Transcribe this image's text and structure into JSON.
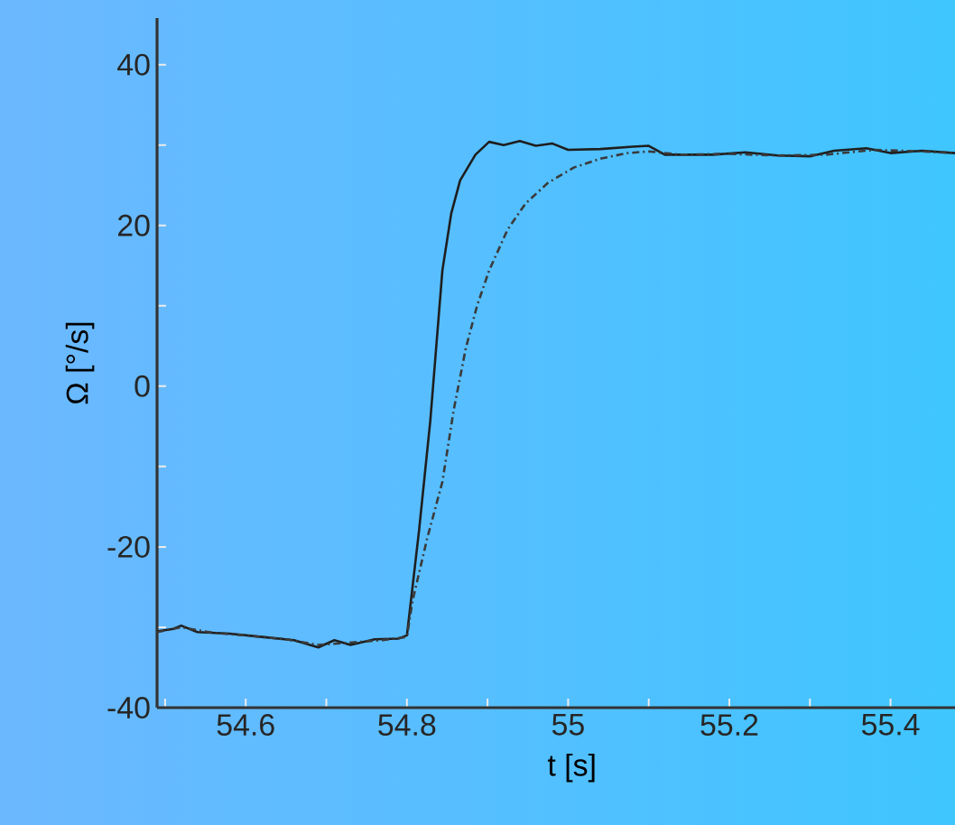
{
  "chart_data": {
    "type": "line",
    "xlabel": "t [s]",
    "ylabel": "Ω [°/s]",
    "xlim": [
      54.49,
      55.48
    ],
    "ylim": [
      -40,
      45.8
    ],
    "xticks": [
      {
        "value": 54.5,
        "label": null
      },
      54.6,
      {
        "value": 54.7,
        "label": null
      },
      54.8,
      {
        "value": 54.9,
        "label": null
      },
      55,
      {
        "value": 55.1,
        "label": null
      },
      55.2,
      {
        "value": 55.3,
        "label": null
      },
      55.4
    ],
    "yticks": [
      -40,
      {
        "value": -30,
        "label": null
      },
      -20,
      {
        "value": -10,
        "label": null
      },
      0,
      {
        "value": 10,
        "label": null
      },
      20,
      {
        "value": 30,
        "label": null
      },
      40
    ],
    "grid": false,
    "series": [
      {
        "color": "#1e1e1e",
        "line_style": "solid",
        "x": [
          54.49,
          54.51,
          54.52,
          54.54,
          54.58,
          54.62,
          54.66,
          54.69,
          54.71,
          54.73,
          54.76,
          54.79,
          54.8,
          54.815,
          54.829,
          54.844,
          54.855,
          54.866,
          54.885,
          54.902,
          54.92,
          54.94,
          54.96,
          54.98,
          55.0,
          55.04,
          55.08,
          55.1,
          55.12,
          55.18,
          55.22,
          55.26,
          55.3,
          55.33,
          55.37,
          55.4,
          55.44,
          55.48
        ],
        "values": [
          -30.5,
          -30.2,
          -29.8,
          -30.6,
          -30.8,
          -31.2,
          -31.6,
          -32.5,
          -31.6,
          -32.2,
          -31.5,
          -31.4,
          -31.0,
          -18,
          -4.3,
          14.4,
          21.5,
          25.6,
          28.8,
          30.4,
          30.0,
          30.5,
          29.9,
          30.2,
          29.4,
          29.5,
          29.8,
          29.9,
          28.8,
          28.8,
          29.1,
          28.7,
          28.6,
          29.3,
          29.6,
          29.0,
          29.3,
          29.0
        ]
      },
      {
        "color": "#3a3a3a",
        "line_style": "dashed",
        "x": [
          54.49,
          54.52,
          54.56,
          54.6,
          54.65,
          54.69,
          54.73,
          54.77,
          54.8,
          54.807,
          54.825,
          54.844,
          54.858,
          54.873,
          54.887,
          54.902,
          54.925,
          54.947,
          54.975,
          55.007,
          55.04,
          55.073,
          55.1,
          55.14,
          55.2,
          55.26,
          55.32,
          55.38,
          55.44,
          55.48
        ],
        "values": [
          -30.6,
          -30.0,
          -30.7,
          -31.0,
          -31.5,
          -32.2,
          -31.9,
          -31.6,
          -31.2,
          -26.7,
          -19,
          -11.9,
          -3,
          4.7,
          10,
          14.4,
          19.5,
          22.7,
          25.3,
          27.2,
          28.3,
          29.0,
          29.2,
          28.8,
          28.9,
          28.7,
          28.8,
          29.4,
          29.2,
          29.0
        ]
      }
    ]
  }
}
